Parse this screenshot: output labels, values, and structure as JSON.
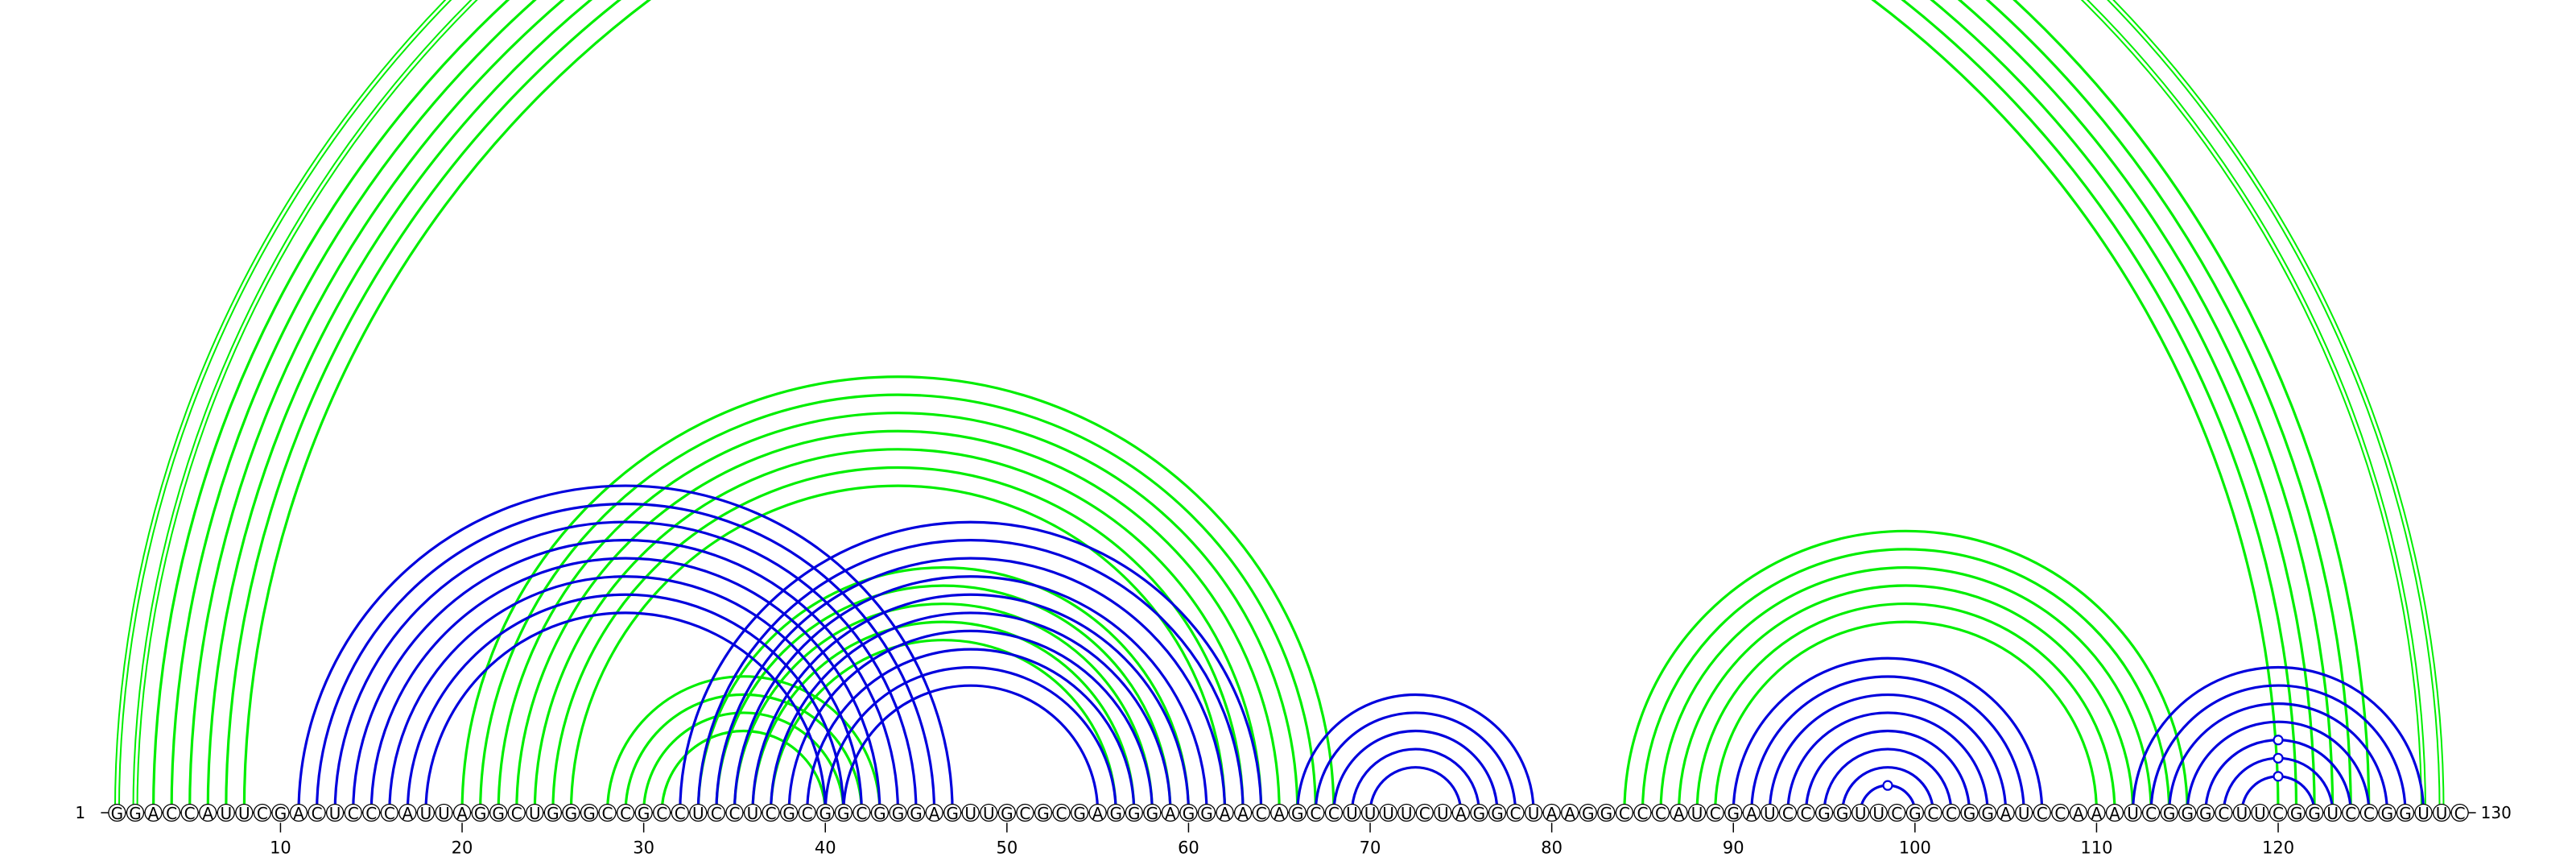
{
  "sequence": "GGACCAUUCGACUCCCAUUAGGCUGGGCCGCCUCCUCGCGGCGGGAGUUGCGCGAGGGAGGAACAGCCUUUUCUAGGCUAAGGCCCAUCGAUCCGGUUCGCCGGAUCCAAAUCGGGCUUCGGUCCGGUUC",
  "start_label": "1",
  "end_label": "130",
  "tick_labels": [
    "10",
    "20",
    "30",
    "40",
    "50",
    "60",
    "70",
    "80",
    "90",
    "100",
    "110",
    "120"
  ],
  "tick_positions": [
    10,
    20,
    30,
    40,
    50,
    60,
    70,
    80,
    90,
    100,
    110,
    120
  ],
  "colors": {
    "structure_a": "#0000dd",
    "structure_b": "#00ee00",
    "backbone": "#000000"
  },
  "chart_data": {
    "type": "arc-diagram",
    "length": 130,
    "series": [
      {
        "color": "structure_b",
        "pairs": [
          [
            1,
            129
          ],
          [
            2,
            128
          ],
          [
            3,
            125
          ],
          [
            4,
            124
          ],
          [
            5,
            123
          ],
          [
            6,
            122
          ],
          [
            7,
            121
          ],
          [
            8,
            120
          ],
          [
            20,
            68
          ],
          [
            21,
            67
          ],
          [
            22,
            66
          ],
          [
            23,
            65
          ],
          [
            24,
            64
          ],
          [
            25,
            63
          ],
          [
            26,
            62
          ],
          [
            28,
            43
          ],
          [
            29,
            42
          ],
          [
            30,
            41
          ],
          [
            31,
            40
          ],
          [
            33,
            60
          ],
          [
            34,
            59
          ],
          [
            35,
            58
          ],
          [
            36,
            57
          ],
          [
            37,
            56
          ],
          [
            84,
            115
          ],
          [
            85,
            114
          ],
          [
            86,
            113
          ],
          [
            87,
            112
          ],
          [
            88,
            111
          ],
          [
            89,
            110
          ]
        ],
        "outlined_pairs": [
          [
            1,
            129
          ],
          [
            2,
            128
          ]
        ],
        "markers": [
          65
        ]
      },
      {
        "color": "structure_a",
        "pairs": [
          [
            11,
            47
          ],
          [
            12,
            46
          ],
          [
            13,
            45
          ],
          [
            14,
            44
          ],
          [
            15,
            43
          ],
          [
            16,
            42
          ],
          [
            17,
            41
          ],
          [
            18,
            40
          ],
          [
            32,
            64
          ],
          [
            33,
            63
          ],
          [
            34,
            62
          ],
          [
            35,
            61
          ],
          [
            36,
            60
          ],
          [
            37,
            59
          ],
          [
            38,
            58
          ],
          [
            39,
            57
          ],
          [
            40,
            56
          ],
          [
            41,
            55
          ],
          [
            66,
            79
          ],
          [
            67,
            78
          ],
          [
            68,
            77
          ],
          [
            69,
            76
          ],
          [
            70,
            75
          ],
          [
            90,
            107
          ],
          [
            91,
            106
          ],
          [
            92,
            105
          ],
          [
            93,
            104
          ],
          [
            94,
            103
          ],
          [
            95,
            102
          ],
          [
            96,
            101
          ],
          [
            97,
            100
          ],
          [
            112,
            128
          ],
          [
            113,
            127
          ],
          [
            114,
            126
          ],
          [
            115,
            125
          ],
          [
            116,
            124
          ],
          [
            117,
            123
          ],
          [
            118,
            122
          ]
        ],
        "outlined_pairs": [],
        "markers": [
          98.5,
          120,
          120,
          120
        ]
      }
    ]
  }
}
